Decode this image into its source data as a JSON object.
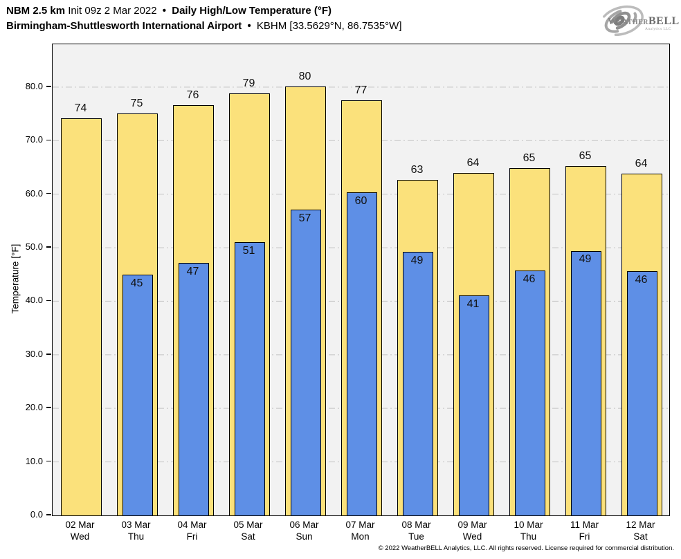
{
  "header": {
    "model": "NBM 2.5 km",
    "init": "Init 09z 2 Mar 2022",
    "separator": "•",
    "product": "Daily High/Low Temperature (°F)",
    "station_name": "Birmingham-Shuttlesworth International Airport",
    "station_id": "KBHM [33.5629°N, 86.7535°W]"
  },
  "logo": {
    "weather": "Weather",
    "bell": "BELL",
    "subtext": "Analytics LLC"
  },
  "chart_data": {
    "type": "bar",
    "title": "Daily High/Low Temperature (°F)",
    "xlabel": "",
    "ylabel": "Temperature [°F]",
    "ylim": [
      0,
      88
    ],
    "yticks": [
      0,
      10,
      20,
      30,
      40,
      50,
      60,
      70,
      80
    ],
    "ytick_labels": [
      "0.0",
      "10.0",
      "20.0",
      "30.0",
      "40.0",
      "50.0",
      "60.0",
      "70.0",
      "80.0"
    ],
    "grid": "horizontal dash-dot lines at 10–80",
    "legend_position": "none",
    "categories": [
      {
        "date": "02 Mar",
        "weekday": "Wed"
      },
      {
        "date": "03 Mar",
        "weekday": "Thu"
      },
      {
        "date": "04 Mar",
        "weekday": "Fri"
      },
      {
        "date": "05 Mar",
        "weekday": "Sat"
      },
      {
        "date": "06 Mar",
        "weekday": "Sun"
      },
      {
        "date": "07 Mar",
        "weekday": "Mon"
      },
      {
        "date": "08 Mar",
        "weekday": "Tue"
      },
      {
        "date": "09 Mar",
        "weekday": "Wed"
      },
      {
        "date": "10 Mar",
        "weekday": "Thu"
      },
      {
        "date": "11 Mar",
        "weekday": "Fri"
      },
      {
        "date": "12 Mar",
        "weekday": "Sat"
      }
    ],
    "series": [
      {
        "name": "High",
        "values": [
          74.0,
          74.9,
          76.5,
          78.7,
          80.0,
          77.4,
          62.6,
          63.8,
          64.7,
          65.1,
          63.7
        ],
        "labels": [
          "74",
          "75",
          "76",
          "79",
          "80",
          "77",
          "63",
          "64",
          "65",
          "65",
          "64"
        ]
      },
      {
        "name": "Low",
        "values": [
          null,
          44.8,
          47.1,
          50.9,
          57.0,
          60.2,
          49.1,
          41.0,
          45.6,
          49.3,
          45.5
        ],
        "labels": [
          "",
          "45",
          "47",
          "51",
          "57",
          "60",
          "49",
          "41",
          "46",
          "49",
          "46"
        ]
      }
    ],
    "colors": {
      "high_bar": "#FBE17B",
      "low_bar": "#5E8FE6",
      "bar_border": "#000000",
      "plot_bg": "#F2F2F2",
      "grid_line": "#C9C9C9"
    }
  },
  "footer": {
    "copyright": "© 2022 WeatherBELL Analytics, LLC. All rights reserved. License required for commercial distribution."
  }
}
